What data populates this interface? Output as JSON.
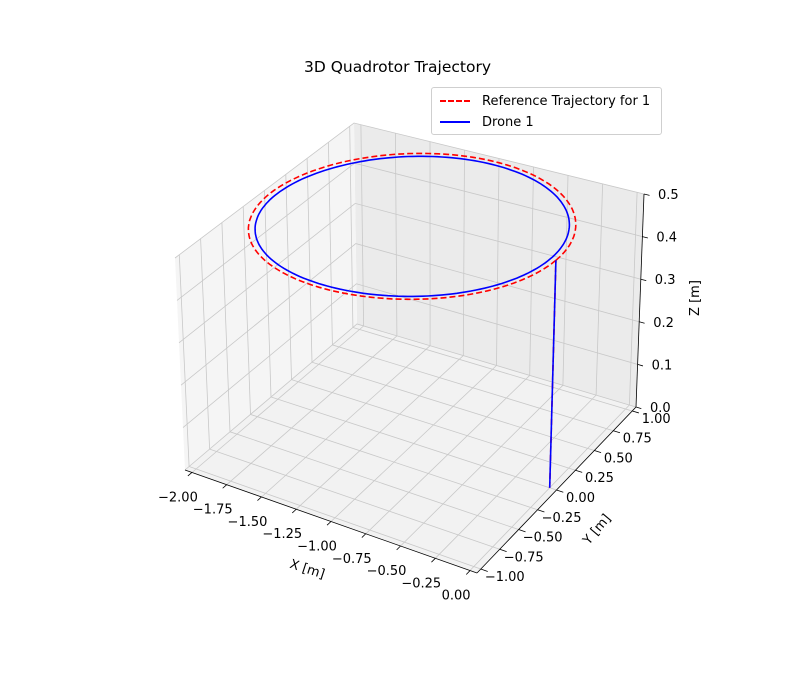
{
  "chart_data": {
    "type": "line",
    "projection": "3d",
    "title": "3D Quadrotor Trajectory",
    "xlabel": "X [m]",
    "ylabel": "Y [m]",
    "zlabel": "Z [m]",
    "xlim": [
      -2.05,
      0.05
    ],
    "ylim": [
      -1.05,
      1.05
    ],
    "zlim": [
      0.0,
      0.5
    ],
    "xticks": [
      "−2.00",
      "−1.75",
      "−1.50",
      "−1.25",
      "−1.00",
      "−0.75",
      "−0.50",
      "−0.25",
      "0.00"
    ],
    "yticks": [
      "−1.00",
      "−0.75",
      "−0.50",
      "−0.25",
      "0.00",
      "0.25",
      "0.50",
      "0.75",
      "1.00"
    ],
    "zticks": [
      "0.0",
      "0.1",
      "0.2",
      "0.3",
      "0.4",
      "0.5"
    ],
    "grid": true,
    "legend_position": "upper right",
    "series": [
      {
        "name": "Reference Trajectory for 1",
        "color": "#ff0000",
        "style": "dashed",
        "description_points": {
          "circle_center": [
            -1.0,
            0.0,
            0.5
          ],
          "circle_radius": 1.0,
          "vertical_segment": [
            [
              0.0,
              0.0,
              0.0
            ],
            [
              0.0,
              0.0,
              0.5
            ]
          ]
        }
      },
      {
        "name": "Drone 1",
        "color": "#0000ff",
        "style": "solid",
        "description_points": {
          "circle_center": [
            -1.0,
            0.0,
            0.5
          ],
          "circle_radius": 0.96,
          "vertical_segment": [
            [
              0.0,
              0.0,
              0.0
            ],
            [
              0.0,
              0.0,
              0.5
            ]
          ]
        }
      }
    ]
  }
}
